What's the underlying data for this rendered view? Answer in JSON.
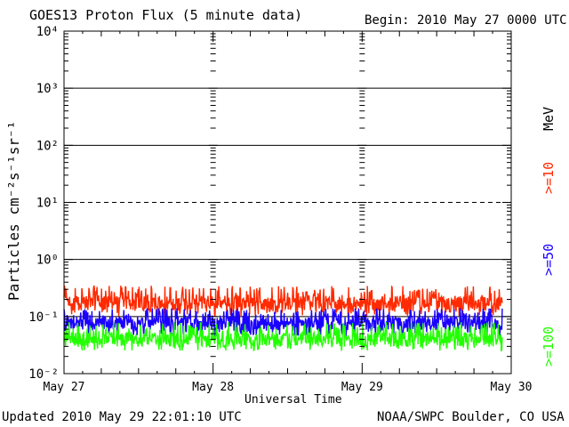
{
  "header": {
    "title": "GOES13 Proton Flux (5 minute data)",
    "begin": "Begin: 2010 May 27 0000 UTC"
  },
  "footer": {
    "updated": "Updated 2010 May 29 22:01:10 UTC",
    "credit": "NOAA/SWPC Boulder, CO USA"
  },
  "right_labels": {
    "unit": "MeV",
    "p10": ">=10",
    "p50": ">=50",
    "p100": ">=100"
  },
  "colors": {
    "p10": "#ff2a00",
    "p50": "#1a00ff",
    "p100": "#22ff00"
  },
  "chart_data": {
    "type": "line",
    "xlabel": "Universal Time",
    "ylabel": "Particles cm⁻²s⁻¹sr⁻¹",
    "x_ticks": [
      "May 27",
      "May 28",
      "May 29",
      "May 30"
    ],
    "y_ticks": [
      "10⁻²",
      "10⁻¹",
      "10⁰",
      "10¹",
      "10²",
      "10³",
      "10⁴"
    ],
    "y_scale": "log",
    "ylim": [
      0.01,
      10000
    ],
    "xlim_days": [
      0,
      3
    ],
    "gridlines": [
      {
        "value": 0.1,
        "style": "solid"
      },
      {
        "value": 1,
        "style": "solid"
      },
      {
        "value": 10,
        "style": "dashed"
      },
      {
        "value": 100,
        "style": "solid"
      },
      {
        "value": 1000,
        "style": "solid"
      }
    ],
    "series": [
      {
        "name": ">=10",
        "color": "#ff2a00",
        "typical_value": 0.17,
        "range": [
          0.1,
          0.35
        ],
        "x_end": 2.94
      },
      {
        "name": ">=50",
        "color": "#1a00ff",
        "typical_value": 0.075,
        "range": [
          0.045,
          0.14
        ],
        "x_end": 2.94
      },
      {
        "name": ">=100",
        "color": "#22ff00",
        "typical_value": 0.04,
        "range": [
          0.025,
          0.08
        ],
        "x_end": 2.94
      }
    ]
  }
}
